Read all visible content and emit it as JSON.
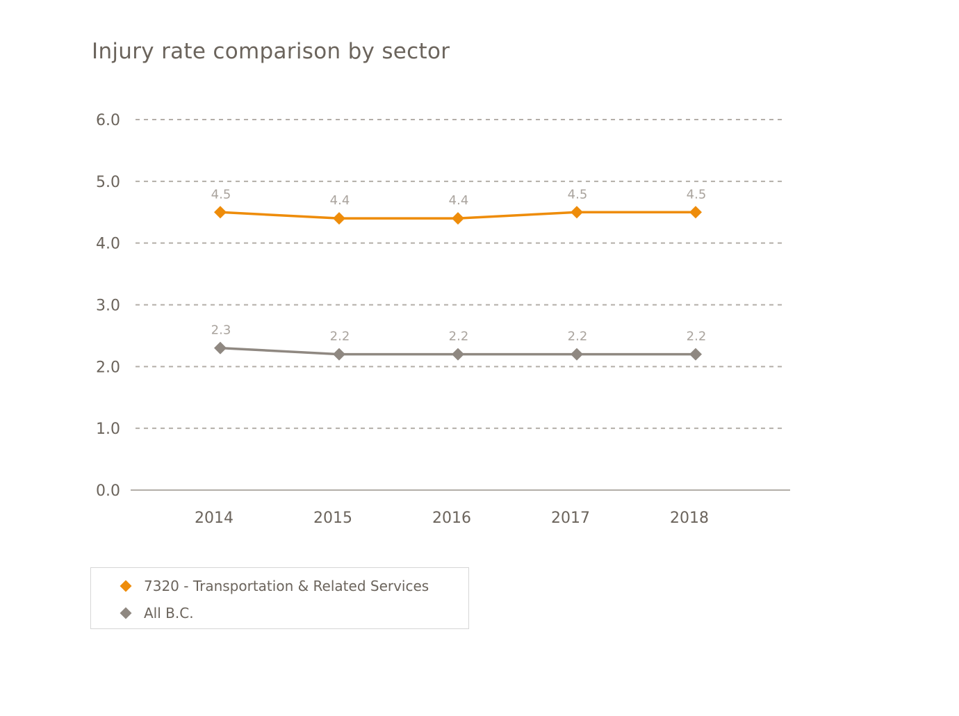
{
  "chart_data": {
    "type": "line",
    "title": "Injury rate comparison by sector",
    "xlabel": "",
    "ylabel": "",
    "x": [
      "2014",
      "2015",
      "2016",
      "2017",
      "2018"
    ],
    "ylim": [
      0,
      6
    ],
    "yticks": [
      "0.0",
      "1.0",
      "2.0",
      "3.0",
      "4.0",
      "5.0",
      "6.0"
    ],
    "grid": true,
    "legend_position": "bottom-left",
    "series": [
      {
        "name": "7320 - Transportation & Related Services",
        "color": "#ee8c0a",
        "values": [
          4.5,
          4.4,
          4.4,
          4.5,
          4.5
        ],
        "labels": [
          "4.5",
          "4.4",
          "4.4",
          "4.5",
          "4.5"
        ]
      },
      {
        "name": "All B.C.",
        "color": "#8f8881",
        "values": [
          2.3,
          2.2,
          2.2,
          2.2,
          2.2
        ],
        "labels": [
          "2.3",
          "2.2",
          "2.2",
          "2.2",
          "2.2"
        ]
      }
    ]
  },
  "colors": {
    "text": "#6b645c",
    "data_label": "#a9a39d",
    "grid": "#b3aea8",
    "axis": "#b3aea8"
  }
}
